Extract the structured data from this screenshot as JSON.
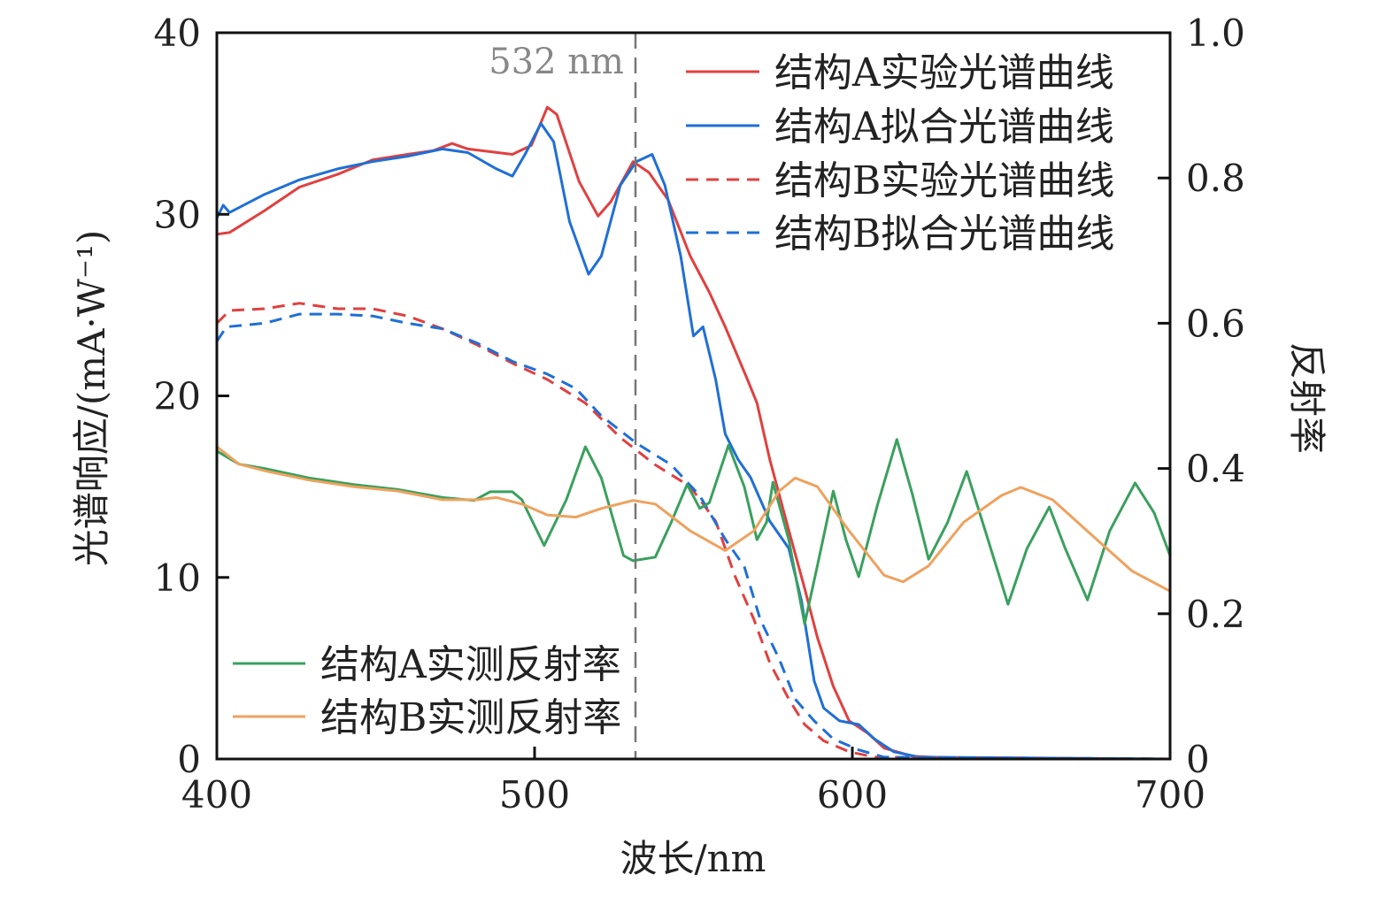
{
  "chart_data": {
    "type": "line",
    "xlabel": "波长/nm",
    "ylabel_left": "光谱响应/(mA·W⁻¹)",
    "ylabel_right": "反射率",
    "xlim": [
      400,
      700
    ],
    "ylim_left": [
      0,
      40
    ],
    "ylim_right": [
      0,
      1.0
    ],
    "x_ticks": [
      "400",
      "500",
      "600",
      "700"
    ],
    "y_left_ticks": [
      "0",
      "10",
      "20",
      "30",
      "40"
    ],
    "y_right_ticks": [
      "0",
      "0.2",
      "0.4",
      "0.6",
      "0.8",
      "1.0"
    ],
    "annotation": {
      "text": "532 nm",
      "x": 532
    },
    "legend_top_right": [
      "结构A实验光谱曲线",
      "结构A拟合光谱曲线",
      "结构B实验光谱曲线",
      "结构B拟合光谱曲线"
    ],
    "legend_bottom_left": [
      "结构A实测反射率",
      "结构B实测反射率"
    ],
    "series": [
      {
        "name": "结构A实验光谱曲线",
        "axis": "left",
        "color": "#e0403f",
        "dash": false,
        "x": [
          400,
          404,
          415,
          426,
          438,
          449,
          460,
          468,
          474,
          479,
          493,
          499,
          504,
          507,
          514,
          520,
          524,
          531,
          536,
          542,
          549,
          555,
          560,
          567,
          570,
          574,
          580,
          585,
          589,
          594,
          599,
          605,
          610,
          619,
          638,
          700
        ],
        "y": [
          28.9,
          29.0,
          30.2,
          31.5,
          32.2,
          33.0,
          33.3,
          33.5,
          33.9,
          33.6,
          33.3,
          33.8,
          35.9,
          35.5,
          31.8,
          29.9,
          30.7,
          32.9,
          32.3,
          30.8,
          27.7,
          25.7,
          23.8,
          20.9,
          19.6,
          16.5,
          12.6,
          9.4,
          6.7,
          4.0,
          2.1,
          1.4,
          0.6,
          0.15,
          0,
          0
        ]
      },
      {
        "name": "结构A拟合光谱曲线",
        "axis": "left",
        "color": "#1f6fd6",
        "dash": false,
        "x": [
          400,
          402,
          404,
          415,
          426,
          438,
          449,
          460,
          471,
          479,
          488,
          493,
          497,
          502,
          506,
          511,
          517,
          521,
          527,
          532,
          537,
          541,
          546,
          550,
          553,
          557,
          560,
          564,
          568,
          574,
          580,
          584,
          588,
          591,
          596,
          602,
          607,
          613,
          621,
          700
        ],
        "y": [
          29.8,
          30.5,
          30.1,
          31.1,
          31.9,
          32.5,
          32.9,
          33.2,
          33.6,
          33.4,
          32.5,
          32.1,
          33.3,
          35.0,
          34.0,
          29.6,
          26.7,
          27.7,
          31.6,
          32.9,
          33.3,
          31.6,
          27.7,
          23.3,
          23.8,
          20.9,
          17.9,
          16.5,
          15.5,
          13.1,
          11.6,
          8.7,
          4.3,
          2.8,
          2.1,
          1.9,
          1.1,
          0.4,
          0.1,
          0
        ]
      },
      {
        "name": "结构B实验光谱曲线",
        "axis": "left",
        "color": "#e0403f",
        "dash": true,
        "x": [
          400,
          404,
          415,
          426,
          438,
          449,
          460,
          471,
          482,
          493,
          504,
          516,
          527,
          538,
          549,
          557,
          563,
          569,
          574,
          580,
          585,
          591,
          599,
          607,
          700
        ],
        "y": [
          24.0,
          24.7,
          24.8,
          25.1,
          24.8,
          24.8,
          24.4,
          23.7,
          22.8,
          21.8,
          20.9,
          19.6,
          17.7,
          16.2,
          15.0,
          13.1,
          10.1,
          7.7,
          5.3,
          3.3,
          1.9,
          1.0,
          0.4,
          0.1,
          0
        ]
      },
      {
        "name": "结构B拟合光谱曲线",
        "axis": "left",
        "color": "#1f6fd6",
        "dash": true,
        "x": [
          400,
          403,
          415,
          426,
          438,
          449,
          460,
          471,
          482,
          493,
          504,
          513,
          521,
          532,
          543,
          552,
          560,
          566,
          571,
          577,
          582,
          588,
          594,
          602,
          610,
          700
        ],
        "y": [
          23.0,
          23.8,
          24.0,
          24.5,
          24.5,
          24.4,
          24.0,
          23.7,
          22.9,
          21.9,
          21.2,
          20.4,
          18.9,
          17.4,
          16.2,
          14.5,
          12.1,
          10.6,
          7.7,
          5.5,
          3.3,
          2.1,
          1.1,
          0.5,
          0.1,
          0
        ]
      },
      {
        "name": "结构A实测反射率",
        "axis": "right",
        "color": "#3aa05e",
        "dash": false,
        "x": [
          400,
          407,
          415,
          429,
          443,
          457,
          471,
          481,
          486,
          493,
          496,
          503,
          510,
          516,
          521,
          528,
          531,
          538,
          543,
          548,
          552,
          555,
          561,
          566,
          570,
          573,
          575,
          580,
          585,
          589,
          594,
          598,
          602,
          608,
          614,
          619,
          624,
          630,
          636,
          641,
          649,
          655,
          662,
          667,
          674,
          681,
          689,
          695,
          700
        ],
        "y": [
          0.424,
          0.406,
          0.4,
          0.387,
          0.378,
          0.371,
          0.36,
          0.356,
          0.368,
          0.368,
          0.357,
          0.294,
          0.357,
          0.43,
          0.387,
          0.28,
          0.273,
          0.278,
          0.326,
          0.378,
          0.345,
          0.353,
          0.432,
          0.375,
          0.302,
          0.326,
          0.381,
          0.302,
          0.186,
          0.266,
          0.369,
          0.302,
          0.251,
          0.351,
          0.44,
          0.363,
          0.275,
          0.326,
          0.396,
          0.326,
          0.213,
          0.29,
          0.347,
          0.29,
          0.219,
          0.314,
          0.38,
          0.339,
          0.28
        ]
      },
      {
        "name": "结构B实测反射率",
        "axis": "right",
        "color": "#eea25e",
        "dash": false,
        "x": [
          400,
          407,
          415,
          429,
          443,
          457,
          471,
          482,
          488,
          496,
          504,
          513,
          521,
          531,
          538,
          549,
          560,
          569,
          577,
          582,
          589,
          599,
          610,
          616,
          624,
          635,
          647,
          653,
          663,
          677,
          688,
          700
        ],
        "y": [
          0.43,
          0.406,
          0.397,
          0.384,
          0.375,
          0.369,
          0.357,
          0.357,
          0.36,
          0.351,
          0.336,
          0.333,
          0.345,
          0.356,
          0.351,
          0.314,
          0.287,
          0.314,
          0.369,
          0.387,
          0.375,
          0.314,
          0.253,
          0.244,
          0.266,
          0.326,
          0.363,
          0.374,
          0.357,
          0.302,
          0.259,
          0.231
        ]
      }
    ]
  }
}
